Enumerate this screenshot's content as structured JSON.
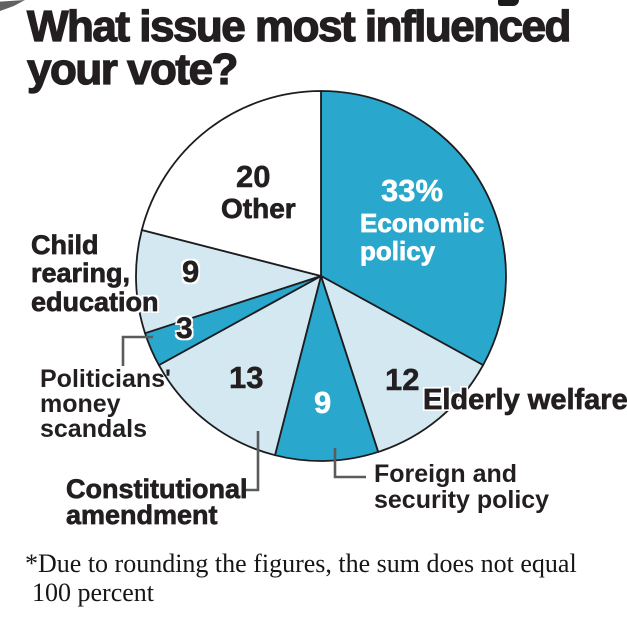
{
  "title": {
    "text": "What issue most influenced your vote?",
    "line1": "What issue most influenced",
    "line2": "your vote?"
  },
  "footnote": {
    "line1": "*Due to rounding the figures, the sum does not equal",
    "line2": "100 percent"
  },
  "colors": {
    "teal": "#29a7cd",
    "light_blue": "#d4e8f2",
    "white": "#ffffff",
    "ink": "#231f20",
    "outline": "#1d1d1f",
    "leader_gray": "#5a5b5d"
  },
  "chart_data": {
    "type": "pie",
    "title": "What issue most influenced your vote?",
    "values_unit": "percent",
    "start_angle": "12 o'clock, clockwise",
    "legend": "none (direct labels with leader lines)",
    "note": "*Due to rounding the figures, the sum does not equal 100 percent",
    "slices": [
      {
        "label": "Economic policy",
        "value": 33,
        "display_value": "33%",
        "color": "#29a7cd",
        "text_color": "#ffffff"
      },
      {
        "label": "Elderly welfare",
        "value": 12,
        "display_value": "12",
        "color": "#d4e8f2",
        "text_color": "#231f20"
      },
      {
        "label": "Foreign and security policy",
        "value": 9,
        "display_value": "9",
        "color": "#29a7cd",
        "text_color": "#ffffff"
      },
      {
        "label": "Constitutional amendment",
        "value": 13,
        "display_value": "13",
        "color": "#d4e8f2",
        "text_color": "#231f20"
      },
      {
        "label": "Politicians' money scandals",
        "value": 3,
        "display_value": "3",
        "color": "#29a7cd",
        "text_color": "#231f20"
      },
      {
        "label": "Child rearing, education",
        "value": 9,
        "display_value": "9",
        "color": "#d4e8f2",
        "text_color": "#231f20"
      },
      {
        "label": "Other",
        "value": 20,
        "display_value": "20",
        "color": "#ffffff",
        "text_color": "#231f20",
        "fills_remainder": true
      }
    ]
  }
}
